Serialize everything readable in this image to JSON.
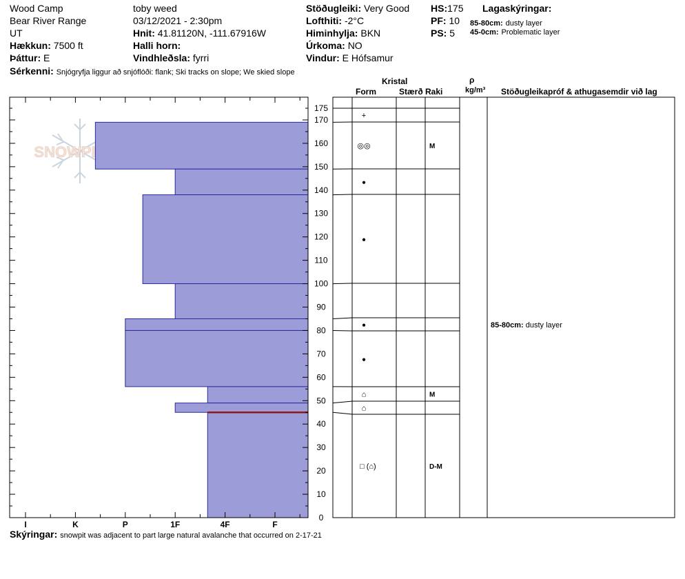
{
  "header": {
    "location": "Wood Camp",
    "range": "Bear River Range",
    "state": "UT",
    "elevation_label": "Hækkun:",
    "elevation": "7500 ft",
    "aspect_label": "Þáttur:",
    "aspect": "E",
    "features_label": "Sérkenni:",
    "features": "Snjógryfja liggur að snjóflóði: flank; Ski tracks on slope; We skied slope",
    "observer": "toby weed",
    "datetime": "03/12/2021 - 2:30pm",
    "coords_label": "Hnit:",
    "coords": "41.81120N, -111.67916W",
    "slope_label": "Halli horn:",
    "slope": "",
    "wind_loading_label": "Vindhleðsla:",
    "wind_loading": "fyrri",
    "stability_label": "Stöðugleiki:",
    "stability": "Very Good",
    "air_temp_label": "Lofthiti:",
    "air_temp": "-2°C",
    "sky_label": "Himinhylja:",
    "sky": "BKN",
    "precip_label": "Úrkoma:",
    "precip": "NO",
    "wind_label": "Vindur:",
    "wind": "E Hófsamur",
    "hs_label": "HS:",
    "hs": "175",
    "pf_label": "PF:",
    "pf": "10",
    "ps_label": "PS:",
    "ps": "5",
    "layer_notes_label": "Lagaskýringar:",
    "layer_notes": [
      {
        "range": "85-80cm:",
        "text": "dusty layer"
      },
      {
        "range": "45-0cm:",
        "text": "Problematic layer"
      }
    ]
  },
  "logo": {
    "text": "SNOWPILOT"
  },
  "table_headers": {
    "crystal": "Kristal",
    "form": "Form",
    "size": "Stærð",
    "moisture": "Raki",
    "rho": "ρ",
    "density_unit": "kg/m³",
    "tests": "Stöðugleikapróf & athugasemdir við lag"
  },
  "footer": {
    "notes_label": "Skýringar:",
    "notes": "snowpit was adjacent to part large natural avalanche that occurred on 2-17-21"
  },
  "colors": {
    "fill": "#9c9cd8",
    "edge": "#2a2a9c",
    "weak_layer": "#8b1a1a"
  },
  "chart_data": {
    "type": "bar",
    "orientation": "horizontal",
    "title": "",
    "xlabel": "",
    "ylabel": "",
    "hardness_ticks": [
      "I",
      "K",
      "P",
      "1F",
      "4F",
      "F"
    ],
    "y_ticks": [
      0,
      10,
      20,
      30,
      40,
      50,
      60,
      70,
      80,
      90,
      100,
      110,
      120,
      130,
      140,
      150,
      160,
      170,
      175
    ],
    "ylim": [
      0,
      175
    ],
    "weak_layer_depth": 45,
    "layers": [
      {
        "top": 175,
        "bottom": 169,
        "hardness": "F",
        "hardness_index": 5.7,
        "form": "+",
        "moisture": ""
      },
      {
        "top": 169,
        "bottom": 149,
        "hardness": "K-",
        "hardness_index": 1.4,
        "form": "◎◎",
        "moisture": "M"
      },
      {
        "top": 149,
        "bottom": 138,
        "hardness": "1F",
        "hardness_index": 3.0,
        "form": "●",
        "moisture": ""
      },
      {
        "top": 138,
        "bottom": 100,
        "hardness": "P+",
        "hardness_index": 2.35,
        "form": "●",
        "moisture": ""
      },
      {
        "top": 100,
        "bottom": 85,
        "hardness": "1F",
        "hardness_index": 3.0,
        "form": "",
        "moisture": ""
      },
      {
        "top": 85,
        "bottom": 80,
        "hardness": "P",
        "hardness_index": 2.0,
        "form": "●",
        "moisture": ""
      },
      {
        "top": 80,
        "bottom": 56,
        "hardness": "P",
        "hardness_index": 2.0,
        "form": "●",
        "moisture": ""
      },
      {
        "top": 56,
        "bottom": 49,
        "hardness": "4F-",
        "hardness_index": 3.65,
        "form": "⌂",
        "moisture": "M"
      },
      {
        "top": 49,
        "bottom": 45,
        "hardness": "1F",
        "hardness_index": 3.0,
        "form": "⌂",
        "moisture": ""
      },
      {
        "top": 45,
        "bottom": 0,
        "hardness": "4F-",
        "hardness_index": 3.65,
        "form": "□ (⌂)",
        "moisture": "D-M"
      }
    ],
    "layer_comments": [
      {
        "depth": 82.5,
        "range": "85-80cm:",
        "text": "dusty layer"
      }
    ]
  }
}
